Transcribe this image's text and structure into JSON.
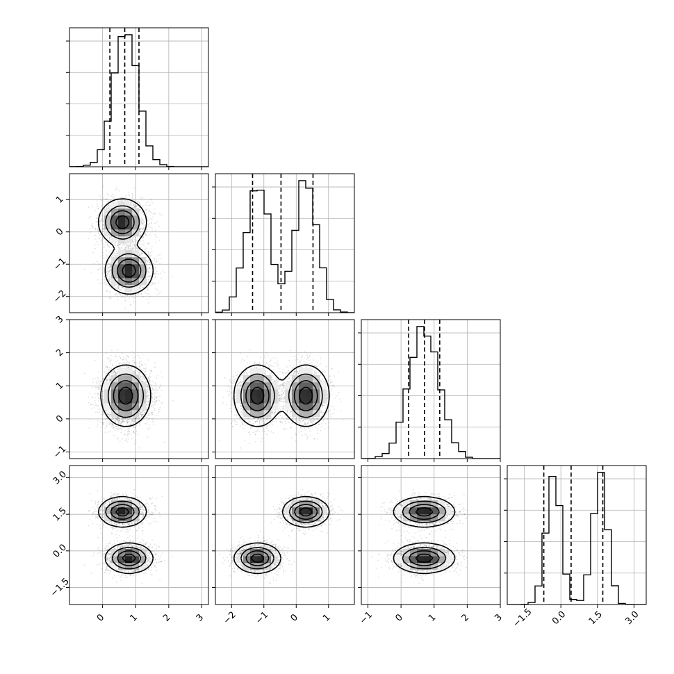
{
  "chart_data": {
    "type": "corner",
    "n_params": 4,
    "param_ranges": [
      [
        -1,
        3.2
      ],
      [
        -2.5,
        1.8
      ],
      [
        -1.2,
        3.0
      ],
      [
        -2.2,
        3.5
      ]
    ],
    "ticks": [
      [
        "0",
        "1",
        "2",
        "3"
      ],
      [
        "−2",
        "−1",
        "0",
        "1"
      ],
      [
        "−1",
        "0",
        "1",
        "2",
        "3"
      ],
      [
        "−1.5",
        "0.0",
        "1.5",
        "3.0"
      ]
    ],
    "tick_values": [
      [
        0,
        1,
        2,
        3
      ],
      [
        -2,
        -1,
        0,
        1
      ],
      [
        -1,
        0,
        1,
        2,
        3
      ],
      [
        -1.5,
        0.0,
        1.5,
        3.0
      ]
    ],
    "quantiles": [
      [
        0.22,
        0.67,
        1.1
      ],
      [
        -1.35,
        -0.47,
        0.52
      ],
      [
        0.23,
        0.71,
        1.17
      ],
      [
        -0.7,
        0.42,
        1.72
      ]
    ],
    "components": [
      {
        "weight": 0.5,
        "mean": [
          0.8,
          -1.2,
          0.7,
          -0.3
        ],
        "sd": [
          0.35,
          0.35,
          0.45,
          0.3
        ]
      },
      {
        "weight": 0.5,
        "mean": [
          0.6,
          0.3,
          0.7,
          1.6
        ],
        "sd": [
          0.35,
          0.35,
          0.45,
          0.3
        ]
      }
    ],
    "marginal_peaks": [
      {
        "param": 1,
        "bin_centers": [
          -2.45,
          -2.25,
          -2.05,
          -1.85,
          -1.65,
          -1.45,
          -1.25,
          -1.05,
          -0.85,
          -0.65,
          -0.45,
          -0.25,
          -0.05,
          0.15,
          0.35,
          0.55,
          0.75,
          0.95,
          1.15,
          1.35,
          1.55,
          1.75
        ]
      }
    ],
    "xlabel": "",
    "ylabel": "",
    "title": ""
  }
}
